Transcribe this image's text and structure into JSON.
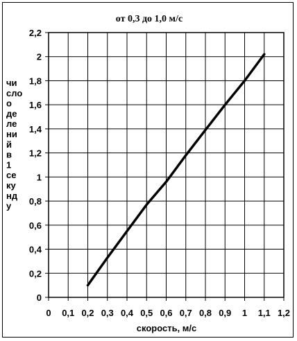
{
  "chart_data": {
    "type": "line",
    "title": "от 0,3   до 1,0 м/с",
    "xlabel": "скорость, м/с",
    "ylabel_lines": [
      "чи",
      "сло",
      "о",
      "де",
      "ле",
      "ни",
      "й",
      "в",
      "1",
      "се",
      "ку",
      "нд",
      "у"
    ],
    "xlim": [
      0,
      1.2
    ],
    "ylim": [
      0,
      2.2
    ],
    "x_ticks": [
      0,
      0.1,
      0.2,
      0.3,
      0.4,
      0.5,
      0.6,
      0.7,
      0.8,
      0.9,
      1,
      1.1,
      1.2
    ],
    "x_tick_labels": [
      "0",
      "0,1",
      "0,2",
      "0,3",
      "0,4",
      "0,5",
      "0,6",
      "0,7",
      "0,8",
      "0,9",
      "1",
      "1,1",
      "1,2"
    ],
    "y_ticks": [
      0,
      0.2,
      0.4,
      0.6,
      0.8,
      1,
      1.2,
      1.4,
      1.6,
      1.8,
      2,
      2.2
    ],
    "y_tick_labels": [
      "0",
      "0,2",
      "0,4",
      "0,6",
      "0,8",
      "1",
      "1,2",
      "1,4",
      "1,6",
      "1,8",
      "2",
      "2,2"
    ],
    "grid": true,
    "series": [
      {
        "x": [
          0.2,
          0.3,
          0.4,
          0.5,
          0.6,
          0.7,
          0.8,
          0.9,
          1.0,
          1.1
        ],
        "y": [
          0.1,
          0.33,
          0.55,
          0.77,
          0.96,
          1.18,
          1.39,
          1.6,
          1.8,
          2.02
        ]
      }
    ],
    "line_color": "#000000"
  }
}
